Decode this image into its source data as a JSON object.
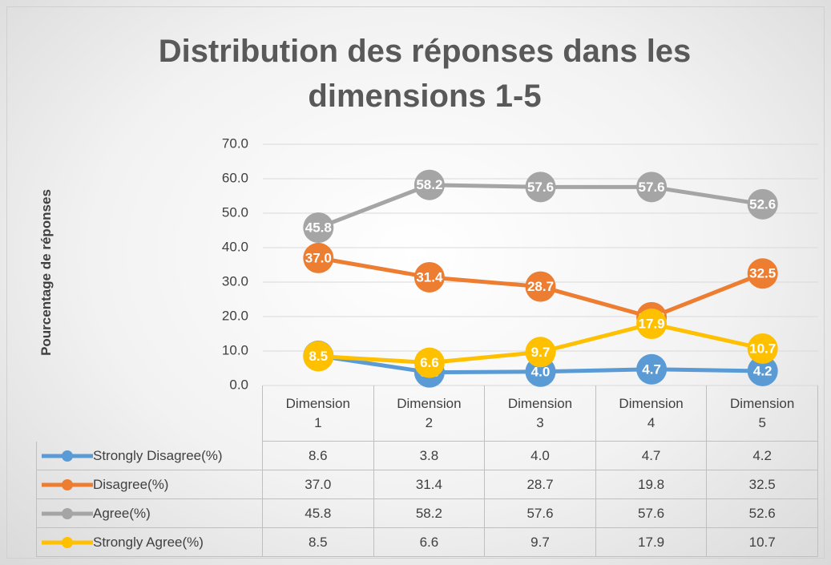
{
  "chart_data": {
    "type": "line",
    "title": "Distribution des réponses dans les dimensions 1-5",
    "y_label": "Pourcentage de réponses",
    "categories": [
      "Dimension 1",
      "Dimension 2",
      "Dimension 3",
      "Dimension 4",
      "Dimension 5"
    ],
    "series": [
      {
        "name": "Strongly Disagree(%)",
        "color": "#5b9bd5",
        "values": [
          8.6,
          3.8,
          4.0,
          4.7,
          4.2
        ],
        "value_labels": [
          "8.6",
          "3.8",
          "4.0",
          "4.7",
          "4.2"
        ]
      },
      {
        "name": "Disagree(%)",
        "color": "#ed7d31",
        "values": [
          37.0,
          31.4,
          28.7,
          19.8,
          32.5
        ],
        "value_labels": [
          "37.0",
          "31.4",
          "28.7",
          "19.8",
          "32.5"
        ]
      },
      {
        "name": "Agree(%)",
        "color": "#a5a5a5",
        "values": [
          45.8,
          58.2,
          57.6,
          57.6,
          52.6
        ],
        "value_labels": [
          "45.8",
          "58.2",
          "57.6",
          "57.6",
          "52.6"
        ]
      },
      {
        "name": "Strongly Agree(%)",
        "color": "#ffc000",
        "values": [
          8.5,
          6.6,
          9.7,
          17.9,
          10.7
        ],
        "value_labels": [
          "8.5",
          "6.6",
          "9.7",
          "17.9",
          "10.7"
        ]
      }
    ],
    "ylim": [
      0,
      70
    ],
    "yticks": [
      {
        "value": 0,
        "label": "0.0"
      },
      {
        "value": 10,
        "label": "10.0"
      },
      {
        "value": 20,
        "label": "20.0"
      },
      {
        "value": 30,
        "label": "30.0"
      },
      {
        "value": 40,
        "label": "40.0"
      },
      {
        "value": 50,
        "label": "50.0"
      },
      {
        "value": 60,
        "label": "60.0"
      },
      {
        "value": 70,
        "label": "70.0"
      }
    ],
    "grid": true,
    "data_table": true
  }
}
